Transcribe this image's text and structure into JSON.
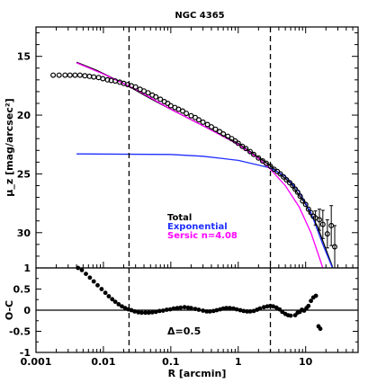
{
  "chart_data": [
    {
      "type": "scatter",
      "title": "NGC 4365",
      "xlabel": "R [arcmin]",
      "ylabel": "μ_z [mag/arcsec²]",
      "x_scale": "log",
      "xlim": [
        0.001,
        60
      ],
      "ylim": [
        33,
        12.5
      ],
      "y_inverted": true,
      "x_ticks": [
        "0.001",
        "0.01",
        "0.1",
        "1",
        "10"
      ],
      "y_ticks": [
        "15",
        "20",
        "25",
        "30"
      ],
      "vlines": [
        0.024,
        3.0
      ],
      "legend": {
        "placement": "lower-center",
        "entries": [
          {
            "label": "Total",
            "color": "#000000"
          },
          {
            "label": "Exponential",
            "color": "#1f2fff"
          },
          {
            "label": "Sersic n=4.08",
            "color": "#ff00ff"
          }
        ]
      },
      "series": [
        {
          "name": "Total",
          "kind": "line",
          "color": "#000000",
          "points": [
            [
              0.004,
              15.5
            ],
            [
              0.008,
              16.2
            ],
            [
              0.02,
              17.3
            ],
            [
              0.05,
              18.6
            ],
            [
              0.1,
              19.5
            ],
            [
              0.3,
              20.9
            ],
            [
              1.0,
              22.4
            ],
            [
              3.0,
              24.3
            ],
            [
              6.0,
              25.8
            ],
            [
              10.0,
              27.6
            ],
            [
              15.0,
              29.5
            ],
            [
              25.0,
              32.9
            ]
          ]
        },
        {
          "name": "Exponential",
          "kind": "line",
          "color": "#1f2fff",
          "points": [
            [
              0.004,
              23.3
            ],
            [
              0.1,
              23.35
            ],
            [
              0.3,
              23.5
            ],
            [
              0.6,
              23.7
            ],
            [
              1.0,
              23.85
            ],
            [
              2.0,
              24.25
            ],
            [
              3.0,
              24.5
            ],
            [
              5.0,
              25.2
            ],
            [
              8.0,
              26.5
            ],
            [
              12.0,
              28.3
            ],
            [
              18.0,
              31.0
            ],
            [
              25.0,
              33.0
            ]
          ]
        },
        {
          "name": "Sersic n=4.08",
          "kind": "line",
          "color": "#ff00ff",
          "points": [
            [
              0.004,
              15.55
            ],
            [
              0.01,
              16.5
            ],
            [
              0.03,
              17.8
            ],
            [
              0.1,
              19.5
            ],
            [
              0.3,
              20.9
            ],
            [
              1.0,
              22.5
            ],
            [
              2.0,
              23.7
            ],
            [
              3.0,
              24.6
            ],
            [
              5.0,
              26.0
            ],
            [
              8.0,
              27.8
            ],
            [
              12.0,
              30.0
            ],
            [
              18.0,
              33.0
            ]
          ]
        },
        {
          "name": "data",
          "kind": "points",
          "color": "#000000",
          "points": [
            [
              0.0018,
              16.6
            ],
            [
              0.0022,
              16.6
            ],
            [
              0.0027,
              16.6
            ],
            [
              0.0032,
              16.6
            ],
            [
              0.0038,
              16.6
            ],
            [
              0.0045,
              16.6
            ],
            [
              0.0053,
              16.65
            ],
            [
              0.0062,
              16.7
            ],
            [
              0.0072,
              16.75
            ],
            [
              0.0085,
              16.8
            ],
            [
              0.0098,
              16.9
            ],
            [
              0.0115,
              17.0
            ],
            [
              0.013,
              17.05
            ],
            [
              0.015,
              17.1
            ],
            [
              0.0175,
              17.2
            ],
            [
              0.02,
              17.3
            ],
            [
              0.023,
              17.4
            ],
            [
              0.026,
              17.5
            ],
            [
              0.03,
              17.6
            ],
            [
              0.035,
              17.8
            ],
            [
              0.04,
              17.95
            ],
            [
              0.046,
              18.1
            ],
            [
              0.053,
              18.3
            ],
            [
              0.06,
              18.45
            ],
            [
              0.07,
              18.65
            ],
            [
              0.08,
              18.85
            ],
            [
              0.09,
              19.0
            ],
            [
              0.1,
              19.2
            ],
            [
              0.115,
              19.35
            ],
            [
              0.13,
              19.5
            ],
            [
              0.15,
              19.65
            ],
            [
              0.17,
              19.85
            ],
            [
              0.2,
              20.05
            ],
            [
              0.23,
              20.2
            ],
            [
              0.26,
              20.4
            ],
            [
              0.3,
              20.6
            ],
            [
              0.35,
              20.8
            ],
            [
              0.4,
              21.0
            ],
            [
              0.46,
              21.2
            ],
            [
              0.53,
              21.4
            ],
            [
              0.6,
              21.6
            ],
            [
              0.7,
              21.8
            ],
            [
              0.8,
              22.0
            ],
            [
              0.9,
              22.2
            ],
            [
              1.0,
              22.4
            ],
            [
              1.15,
              22.65
            ],
            [
              1.3,
              22.85
            ],
            [
              1.5,
              23.1
            ],
            [
              1.7,
              23.35
            ],
            [
              2.0,
              23.65
            ],
            [
              2.3,
              23.9
            ],
            [
              2.6,
              24.1
            ],
            [
              3.0,
              24.35
            ],
            [
              3.4,
              24.6
            ],
            [
              3.8,
              24.8
            ],
            [
              4.2,
              25.0
            ],
            [
              4.7,
              25.25
            ],
            [
              5.2,
              25.5
            ],
            [
              5.8,
              25.75
            ],
            [
              6.4,
              26.0
            ],
            [
              7.0,
              26.3
            ],
            [
              7.6,
              26.55
            ],
            [
              8.3,
              26.9
            ],
            [
              9.0,
              27.3
            ],
            [
              10.0,
              27.6
            ],
            [
              11.0,
              28.0
            ],
            [
              12.0,
              28.3
            ],
            [
              13.0,
              28.6
            ],
            [
              14.0,
              28.75
            ],
            [
              16.0,
              28.9
            ],
            [
              18.0,
              29.3
            ],
            [
              21.0,
              30.1
            ],
            [
              24.0,
              29.4
            ],
            [
              27.0,
              31.2
            ]
          ]
        },
        {
          "name": "data-errors",
          "kind": "errorbars",
          "color": "#000000",
          "points": [
            [
              14.0,
              28.75,
              0.6
            ],
            [
              16.0,
              28.9,
              0.9
            ],
            [
              18.0,
              29.3,
              1.2
            ],
            [
              21.0,
              30.1,
              1.2
            ],
            [
              24.0,
              29.4,
              1.7
            ],
            [
              27.0,
              31.2,
              1.8
            ]
          ]
        }
      ]
    },
    {
      "type": "scatter",
      "xlabel": "R [arcmin]",
      "ylabel": "O-C",
      "x_scale": "log",
      "xlim": [
        0.001,
        60
      ],
      "ylim": [
        -1,
        1
      ],
      "x_ticks": [
        "0.001",
        "0.01",
        "0.1",
        "1",
        "10"
      ],
      "y_ticks": [
        "1",
        "0.5",
        "0",
        "-0.5",
        "-1"
      ],
      "vlines": [
        0.024,
        3.0
      ],
      "hline": 0,
      "annotation": "Δ=0.5",
      "series": [
        {
          "name": "residuals",
          "kind": "points",
          "color": "#000000",
          "points": [
            [
              0.0042,
              1.0
            ],
            [
              0.0048,
              0.95
            ],
            [
              0.0055,
              0.86
            ],
            [
              0.0063,
              0.77
            ],
            [
              0.0072,
              0.68
            ],
            [
              0.0082,
              0.59
            ],
            [
              0.0094,
              0.5
            ],
            [
              0.0107,
              0.41
            ],
            [
              0.012,
              0.33
            ],
            [
              0.0135,
              0.26
            ],
            [
              0.015,
              0.2
            ],
            [
              0.0168,
              0.14
            ],
            [
              0.0188,
              0.09
            ],
            [
              0.021,
              0.05
            ],
            [
              0.0235,
              0.02
            ],
            [
              0.026,
              0.0
            ],
            [
              0.029,
              -0.03
            ],
            [
              0.033,
              -0.05
            ],
            [
              0.037,
              -0.06
            ],
            [
              0.042,
              -0.06
            ],
            [
              0.047,
              -0.06
            ],
            [
              0.053,
              -0.05
            ],
            [
              0.06,
              -0.04
            ],
            [
              0.068,
              -0.02
            ],
            [
              0.077,
              -0.01
            ],
            [
              0.087,
              0.01
            ],
            [
              0.098,
              0.02
            ],
            [
              0.11,
              0.04
            ],
            [
              0.125,
              0.05
            ],
            [
              0.14,
              0.06
            ],
            [
              0.16,
              0.07
            ],
            [
              0.18,
              0.06
            ],
            [
              0.2,
              0.05
            ],
            [
              0.23,
              0.03
            ],
            [
              0.26,
              0.01
            ],
            [
              0.3,
              -0.01
            ],
            [
              0.34,
              -0.03
            ],
            [
              0.38,
              -0.03
            ],
            [
              0.43,
              -0.02
            ],
            [
              0.48,
              0.0
            ],
            [
              0.54,
              0.02
            ],
            [
              0.6,
              0.04
            ],
            [
              0.67,
              0.05
            ],
            [
              0.75,
              0.05
            ],
            [
              0.85,
              0.04
            ],
            [
              0.95,
              0.02
            ],
            [
              1.07,
              0.0
            ],
            [
              1.2,
              -0.02
            ],
            [
              1.35,
              -0.03
            ],
            [
              1.5,
              -0.03
            ],
            [
              1.7,
              -0.02
            ],
            [
              1.9,
              0.01
            ],
            [
              2.1,
              0.04
            ],
            [
              2.4,
              0.07
            ],
            [
              2.7,
              0.09
            ],
            [
              3.0,
              0.1
            ],
            [
              3.3,
              0.09
            ],
            [
              3.7,
              0.06
            ],
            [
              4.1,
              0.02
            ],
            [
              4.5,
              -0.04
            ],
            [
              5.0,
              -0.09
            ],
            [
              5.5,
              -0.12
            ],
            [
              6.0,
              -0.13
            ],
            [
              7.0,
              -0.12
            ],
            [
              7.6,
              -0.06
            ],
            [
              8.2,
              -0.04
            ],
            [
              8.8,
              0.01
            ],
            [
              9.5,
              -0.01
            ],
            [
              10.3,
              0.05
            ],
            [
              11.0,
              0.1
            ],
            [
              12.0,
              0.22
            ],
            [
              13.0,
              0.3
            ],
            [
              14.2,
              0.34
            ],
            [
              15.5,
              -0.38
            ],
            [
              16.5,
              -0.44
            ]
          ]
        }
      ]
    }
  ]
}
